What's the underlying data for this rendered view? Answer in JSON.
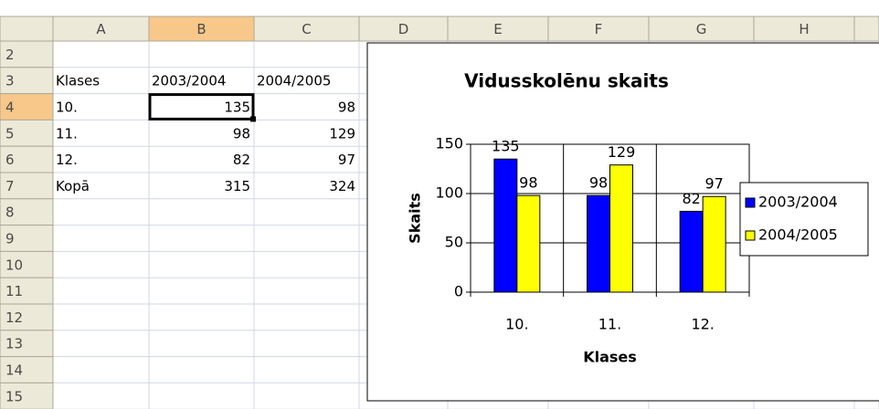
{
  "sheet": {
    "columns": [
      "A",
      "B",
      "C",
      "D",
      "E",
      "F",
      "G",
      "H"
    ],
    "row_headers": [
      2,
      3,
      4,
      5,
      6,
      7,
      8,
      9,
      10,
      11,
      12,
      13,
      14,
      15
    ],
    "cells": [
      [
        "Klases",
        "2003/2004",
        "2004/2005"
      ],
      [
        "10.",
        135,
        98
      ],
      [
        "11.",
        98,
        129
      ],
      [
        "12.",
        82,
        97
      ],
      [
        "Kopā",
        315,
        324
      ]
    ]
  },
  "chart_data": {
    "type": "bar",
    "title": "Vidusskolēnu skaits",
    "x_label": "Klases",
    "y_label": "Skaits",
    "categories": [
      "10.",
      "11.",
      "12."
    ],
    "series": [
      {
        "name": "2003/2004",
        "color": "#0000ff",
        "values": [
          135,
          98,
          82
        ]
      },
      {
        "name": "2004/2005",
        "color": "#ffff00",
        "values": [
          98,
          129,
          97
        ]
      }
    ],
    "ylim": [
      0,
      150
    ],
    "yticks": [
      0,
      50,
      100,
      150
    ],
    "grid": true,
    "legend": "right"
  }
}
